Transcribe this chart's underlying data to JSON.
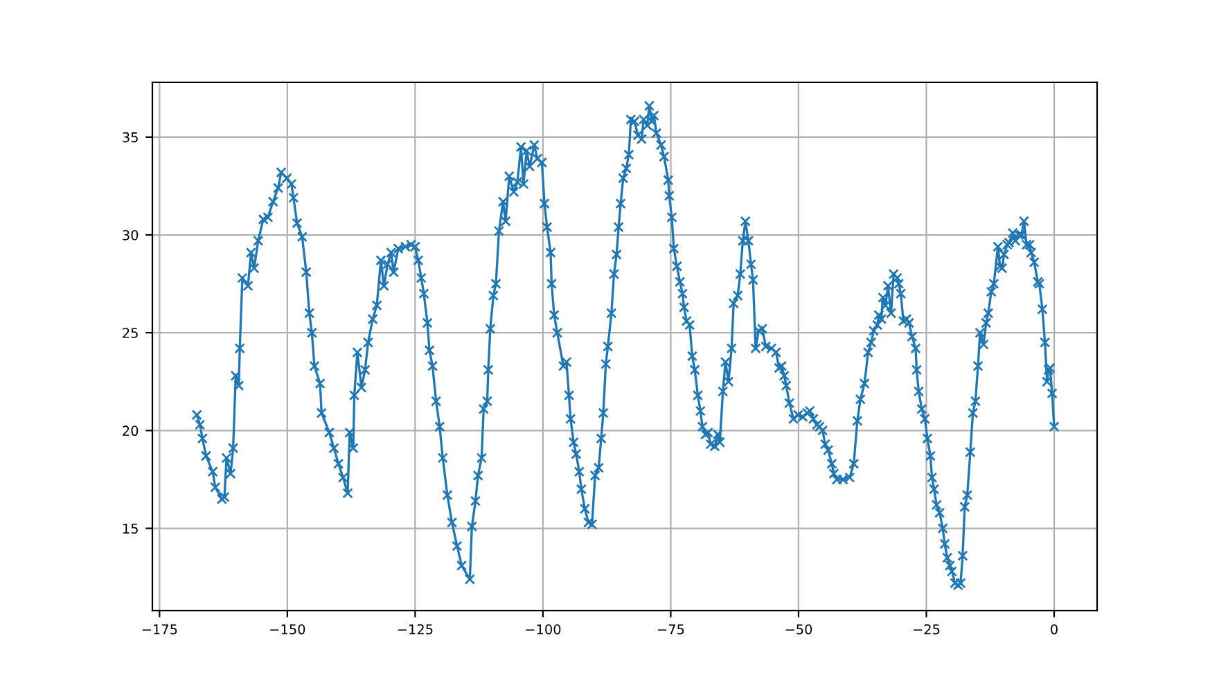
{
  "chart_data": {
    "type": "line",
    "marker": "cross",
    "grid": true,
    "xlim": [
      -176.4,
      8.4
    ],
    "ylim": [
      10.8,
      37.8
    ],
    "xticks": [
      {
        "value": -175,
        "label": "−175"
      },
      {
        "value": -150,
        "label": "−150"
      },
      {
        "value": -125,
        "label": "−125"
      },
      {
        "value": -100,
        "label": "−100"
      },
      {
        "value": -75,
        "label": "−75"
      },
      {
        "value": -50,
        "label": "−50"
      },
      {
        "value": -25,
        "label": "−25"
      },
      0
    ],
    "yticks": [
      15,
      20,
      25,
      30,
      35
    ],
    "series": [
      {
        "color": "#1f77b4",
        "x": [
          -167.7,
          -167.1,
          -166.6,
          -165.9,
          -164.6,
          -164.1,
          -162.8,
          -162.3,
          -161.9,
          -161.1,
          -160.6,
          -160.1,
          -159.5,
          -159.3,
          -158.8,
          -157.7,
          -157.1,
          -156.5,
          -155.7,
          -154.7,
          -153.8,
          -152.8,
          -151.8,
          -151.2,
          -150.1,
          -149.2,
          -148.8,
          -148.1,
          -147.1,
          -146.3,
          -145.7,
          -145.2,
          -144.7,
          -143.6,
          -143.3,
          -141.8,
          -140.9,
          -140.0,
          -139.1,
          -138.2,
          -137.8,
          -137.1,
          -136.9,
          -136.3,
          -135.5,
          -134.8,
          -134.2,
          -133.3,
          -132.5,
          -131.7,
          -131.1,
          -130.4,
          -129.7,
          -129.2,
          -128.3,
          -126.9,
          -125.8,
          -125.0,
          -124.4,
          -123.8,
          -123.3,
          -122.6,
          -122.2,
          -121.6,
          -120.9,
          -120.2,
          -119.6,
          -118.7,
          -117.8,
          -116.8,
          -115.9,
          -114.3,
          -113.9,
          -113.2,
          -112.7,
          -112.0,
          -111.6,
          -110.9,
          -110.7,
          -110.3,
          -109.7,
          -109.2,
          -108.6,
          -107.8,
          -107.3,
          -106.6,
          -105.7,
          -105.0,
          -104.3,
          -103.8,
          -103.2,
          -102.6,
          -101.7,
          -101.1,
          -100.2,
          -99.7,
          -99.2,
          -98.5,
          -98.3,
          -97.8,
          -97.2,
          -96.0,
          -95.4,
          -94.9,
          -94.6,
          -94.0,
          -93.5,
          -92.9,
          -92.5,
          -91.8,
          -91.1,
          -90.4,
          -89.8,
          -89.1,
          -88.6,
          -88.2,
          -87.7,
          -87.3,
          -86.6,
          -86.1,
          -85.6,
          -85.2,
          -84.8,
          -84.3,
          -83.7,
          -83.2,
          -82.8,
          -82.1,
          -81.4,
          -80.7,
          -80.3,
          -79.6,
          -79.2,
          -78.7,
          -78.3,
          -77.8,
          -76.9,
          -76.3,
          -75.5,
          -75.3,
          -74.8,
          -74.4,
          -73.8,
          -73.2,
          -72.7,
          -72.4,
          -71.9,
          -71.3,
          -70.8,
          -70.3,
          -69.7,
          -69.2,
          -68.8,
          -68.2,
          -67.7,
          -67.2,
          -66.4,
          -65.8,
          -65.4,
          -64.8,
          -64.3,
          -63.7,
          -63.1,
          -62.7,
          -61.9,
          -61.4,
          -60.9,
          -60.4,
          -59.8,
          -59.3,
          -58.9,
          -58.4,
          -57.8,
          -57.1,
          -56.4,
          -55.3,
          -54.4,
          -53.8,
          -53.3,
          -52.8,
          -52.4,
          -51.8,
          -51.0,
          -50.1,
          -49.2,
          -48.3,
          -47.8,
          -47.1,
          -46.4,
          -45.9,
          -45.3,
          -44.8,
          -44.2,
          -43.5,
          -43.1,
          -42.5,
          -41.3,
          -40.0,
          -39.2,
          -38.5,
          -37.9,
          -37.1,
          -36.4,
          -35.8,
          -35.3,
          -34.6,
          -34.3,
          -33.8,
          -33.5,
          -33.0,
          -32.5,
          -31.9,
          -31.4,
          -30.7,
          -30.4,
          -30.0,
          -29.5,
          -28.9,
          -28.4,
          -27.8,
          -27.1,
          -26.9,
          -26.5,
          -25.9,
          -25.3,
          -24.8,
          -24.2,
          -23.9,
          -23.5,
          -23.0,
          -22.4,
          -21.8,
          -21.4,
          -20.9,
          -20.4,
          -20.0,
          -19.4,
          -18.8,
          -18.3,
          -17.9,
          -17.5,
          -17.0,
          -16.4,
          -15.9,
          -15.4,
          -14.9,
          -14.5,
          -13.8,
          -13.3,
          -12.9,
          -12.3,
          -11.8,
          -11.0,
          -10.6,
          -10.2,
          -9.8,
          -9.2,
          -8.8,
          -8.1,
          -7.6,
          -6.9,
          -6.4,
          -5.9,
          -5.4,
          -4.8,
          -4.5,
          -3.9,
          -3.2,
          -2.9,
          -2.3,
          -1.8,
          -1.4,
          -1.1,
          -0.8,
          -0.4,
          0
        ],
        "values": [
          20.8,
          20.3,
          19.6,
          18.7,
          17.9,
          17.1,
          16.5,
          16.6,
          18.6,
          17.8,
          19.1,
          22.8,
          22.3,
          24.2,
          27.8,
          27.4,
          29.1,
          28.3,
          29.7,
          30.8,
          30.9,
          31.7,
          32.4,
          33.2,
          32.9,
          32.6,
          31.9,
          30.6,
          29.9,
          28.1,
          26.0,
          25.0,
          23.3,
          22.4,
          20.9,
          19.9,
          19.1,
          18.3,
          17.6,
          16.8,
          19.9,
          19.1,
          21.8,
          24.0,
          22.2,
          23.1,
          24.5,
          25.7,
          26.4,
          28.7,
          27.4,
          28.5,
          29.1,
          28.1,
          29.3,
          29.4,
          29.5,
          29.4,
          28.7,
          27.8,
          27.0,
          25.5,
          24.1,
          23.3,
          21.5,
          20.2,
          18.6,
          16.7,
          15.3,
          14.1,
          13.1,
          12.4,
          15.1,
          16.4,
          17.7,
          18.6,
          21.1,
          21.5,
          23.1,
          25.2,
          26.9,
          27.5,
          30.2,
          31.7,
          30.7,
          33.0,
          32.2,
          32.7,
          34.5,
          32.6,
          34.3,
          33.5,
          34.6,
          33.9,
          33.7,
          31.6,
          30.4,
          29.1,
          27.5,
          25.9,
          25.0,
          23.3,
          23.5,
          21.8,
          20.6,
          19.4,
          18.8,
          17.9,
          17.0,
          16.0,
          15.3,
          15.2,
          17.7,
          18.1,
          19.6,
          20.9,
          23.4,
          24.3,
          26.0,
          28.0,
          29.0,
          30.4,
          31.6,
          32.9,
          33.4,
          34.1,
          35.9,
          35.8,
          35.1,
          34.9,
          35.9,
          35.6,
          36.6,
          35.8,
          36.1,
          35.2,
          34.6,
          34.0,
          32.8,
          32.0,
          30.9,
          29.3,
          28.4,
          27.6,
          27.0,
          26.3,
          25.6,
          25.4,
          23.8,
          23.1,
          21.8,
          21.0,
          20.2,
          19.8,
          19.9,
          19.3,
          19.2,
          19.8,
          19.4,
          22.0,
          23.5,
          22.5,
          24.2,
          26.5,
          26.9,
          28.0,
          29.7,
          30.7,
          29.7,
          28.5,
          27.7,
          24.2,
          25.1,
          25.2,
          24.3,
          24.2,
          24.0,
          23.2,
          23.3,
          22.8,
          22.3,
          21.4,
          20.6,
          20.8,
          20.7,
          20.9,
          21.0,
          20.6,
          20.3,
          20.2,
          20.0,
          19.3,
          19.0,
          18.3,
          17.8,
          17.5,
          17.5,
          17.6,
          18.3,
          20.5,
          21.6,
          22.4,
          24.0,
          24.5,
          25.1,
          25.4,
          25.9,
          25.7,
          26.8,
          26.4,
          27.4,
          26.0,
          28.0,
          27.8,
          27.5,
          27.0,
          25.6,
          25.7,
          25.5,
          24.8,
          24.2,
          23.1,
          22.0,
          21.1,
          20.6,
          19.6,
          18.7,
          17.6,
          17.0,
          16.2,
          15.8,
          15.0,
          14.2,
          13.5,
          13.1,
          12.8,
          12.2,
          12.1,
          12.2,
          13.6,
          16.1,
          16.7,
          18.9,
          20.9,
          21.5,
          23.3,
          25.0,
          24.4,
          25.5,
          26.0,
          27.1,
          27.5,
          29.4,
          28.4,
          28.3,
          29.0,
          29.5,
          29.6,
          30.1,
          29.7,
          30.0,
          30.0,
          30.7,
          29.5,
          29.5,
          29.1,
          28.6,
          27.6,
          27.5,
          26.2,
          24.5,
          22.5,
          23.1,
          23.2,
          21.9,
          20.2
        ]
      }
    ]
  }
}
